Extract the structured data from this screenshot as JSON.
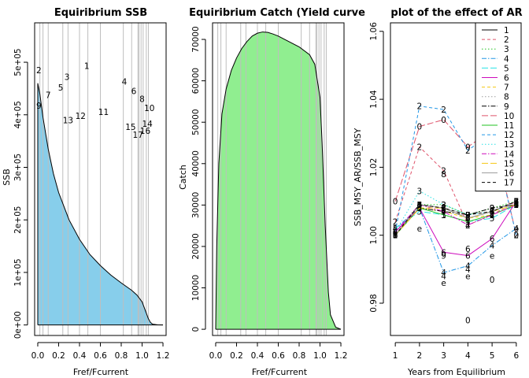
{
  "chart_data": [
    {
      "type": "area",
      "title": "Equiribrium  SSB",
      "xlabel": "Fref/Fcurrent",
      "ylabel": "SSB",
      "xlim": [
        -0.03,
        1.23
      ],
      "ylim": [
        -20000,
        575000
      ],
      "xticks": [
        0.0,
        0.2,
        0.4,
        0.6,
        0.8,
        1.0,
        1.2
      ],
      "xtick_labels": [
        "0.0",
        "0.2",
        "0.4",
        "0.6",
        "0.8",
        "1.0",
        "1.2"
      ],
      "yticks": [
        0,
        100000,
        200000,
        300000,
        400000,
        500000
      ],
      "ytick_labels": [
        "0e+00",
        "1e+05",
        "2e+05",
        "3e+05",
        "4e+05",
        "5e+05"
      ],
      "fill_color": "#87ceeb",
      "curve": {
        "x": [
          0.0,
          0.02,
          0.05,
          0.1,
          0.15,
          0.2,
          0.3,
          0.4,
          0.5,
          0.6,
          0.7,
          0.8,
          0.9,
          0.95,
          1.0,
          1.03,
          1.06,
          1.08,
          1.1,
          1.15,
          1.2
        ],
        "y": [
          460000,
          440000,
          395000,
          335000,
          288000,
          252000,
          200000,
          163000,
          134000,
          113000,
          95000,
          80000,
          66000,
          57000,
          44000,
          28000,
          12000,
          5000,
          1500,
          300,
          0
        ]
      },
      "vertical_lines_x": [
        0.02,
        0.05,
        0.1,
        0.24,
        0.29,
        0.4,
        0.48,
        0.6,
        0.82,
        0.9,
        0.96,
        0.97,
        0.99,
        1.01,
        1.04,
        1.06
      ],
      "point_labels": [
        {
          "label": "1",
          "x": 0.47,
          "y": 493000
        },
        {
          "label": "2",
          "x": 0.01,
          "y": 485000
        },
        {
          "label": "3",
          "x": 0.28,
          "y": 472000
        },
        {
          "label": "4",
          "x": 0.83,
          "y": 463000
        },
        {
          "label": "5",
          "x": 0.22,
          "y": 452000
        },
        {
          "label": "6",
          "x": 0.92,
          "y": 445000
        },
        {
          "label": "7",
          "x": 0.1,
          "y": 438000
        },
        {
          "label": "8",
          "x": 1.0,
          "y": 430000
        },
        {
          "label": "9",
          "x": 0.01,
          "y": 418000
        },
        {
          "label": "10",
          "x": 1.07,
          "y": 413000
        },
        {
          "label": "11",
          "x": 0.63,
          "y": 406000
        },
        {
          "label": "12",
          "x": 0.41,
          "y": 398000
        },
        {
          "label": "13",
          "x": 0.29,
          "y": 390000
        },
        {
          "label": "14",
          "x": 1.05,
          "y": 383000
        },
        {
          "label": "15",
          "x": 0.89,
          "y": 377000
        },
        {
          "label": "16",
          "x": 1.03,
          "y": 370000
        },
        {
          "label": "17",
          "x": 0.96,
          "y": 362000
        }
      ]
    },
    {
      "type": "area",
      "title": "Equiribrium Catch (Yield curve",
      "xlabel": "Fref/Fcurrent",
      "ylabel": "Catch",
      "xlim": [
        -0.03,
        1.23
      ],
      "ylim": [
        -1500,
        74000
      ],
      "xticks": [
        0.0,
        0.2,
        0.4,
        0.6,
        0.8,
        1.0,
        1.2
      ],
      "xtick_labels": [
        "0.0",
        "0.2",
        "0.4",
        "0.6",
        "0.8",
        "1.0",
        "1.2"
      ],
      "yticks": [
        0,
        10000,
        20000,
        30000,
        40000,
        50000,
        60000,
        70000
      ],
      "ytick_labels": [
        "0",
        "10000",
        "20000",
        "30000",
        "40000",
        "50000",
        "60000",
        "70000"
      ],
      "fill_color": "#90ee90",
      "curve": {
        "x": [
          0.0,
          0.01,
          0.03,
          0.06,
          0.1,
          0.15,
          0.2,
          0.25,
          0.3,
          0.35,
          0.4,
          0.45,
          0.5,
          0.55,
          0.6,
          0.7,
          0.8,
          0.9,
          0.95,
          1.0,
          1.02,
          1.05,
          1.08,
          1.1,
          1.15,
          1.2
        ],
        "y": [
          0,
          20000,
          40000,
          52000,
          58000,
          62500,
          65500,
          67800,
          69500,
          70800,
          71500,
          71800,
          71700,
          71300,
          70800,
          69500,
          68200,
          66300,
          64000,
          56000,
          45000,
          25000,
          9000,
          3500,
          500,
          0
        ]
      },
      "vertical_lines_x": [
        0.02,
        0.05,
        0.1,
        0.24,
        0.29,
        0.4,
        0.48,
        0.6,
        0.82,
        0.9,
        0.96,
        0.97,
        0.99,
        1.01,
        1.04,
        1.06
      ]
    },
    {
      "type": "line",
      "title": "plot of the effect of AR",
      "xlabel": "Years from Equilibrium",
      "ylabel": "SSB_MSY_AR/SSB_MSY",
      "xlim": [
        0.8,
        6.2
      ],
      "ylim": [
        0.9705,
        1.0625
      ],
      "xticks": [
        1,
        2,
        3,
        4,
        5,
        6
      ],
      "xtick_labels": [
        "1",
        "2",
        "3",
        "4",
        "5",
        "6"
      ],
      "yticks": [
        0.98,
        1.0,
        1.02,
        1.04,
        1.06
      ],
      "ytick_labels": [
        "0.98",
        "1.00",
        "1.02",
        "1.04",
        "1.06"
      ],
      "x": [
        1,
        2,
        3,
        4,
        5,
        6
      ],
      "legend_position": "top-right",
      "series": [
        {
          "name": "1",
          "marker": "1",
          "color": "#000000",
          "dash": "",
          "values": [
            1.0,
            1.009,
            1.008,
            1.005,
            1.007,
            1.01
          ]
        },
        {
          "name": "2",
          "marker": "2",
          "color": "#df536b",
          "dash": "4,3",
          "values": [
            1.004,
            1.026,
            1.019,
            1.003,
            1.006,
            1.01
          ]
        },
        {
          "name": "3",
          "marker": "3",
          "color": "#22c322",
          "dash": "1.5,2.5",
          "values": [
            1.001,
            1.009,
            1.009,
            1.006,
            1.008,
            1.01
          ]
        },
        {
          "name": "4",
          "marker": "4",
          "color": "#2297e6",
          "dash": "6,2,1.5,2",
          "values": [
            1.002,
            1.008,
            0.989,
            0.991,
            0.997,
            1.002
          ]
        },
        {
          "name": "5",
          "marker": "5",
          "color": "#28e2e5",
          "dash": "8,3",
          "values": [
            1.002,
            1.007,
            1.006,
            1.004,
            1.005,
            1.009
          ]
        },
        {
          "name": "6",
          "marker": "6",
          "color": "#cd0bbc",
          "dash": "",
          "values": [
            1.001,
            1.008,
            0.995,
            0.994,
            0.999,
            1.01
          ]
        },
        {
          "name": "7",
          "marker": "7",
          "color": "#f5c710",
          "dash": "4,3",
          "values": [
            1.0,
            1.008,
            1.007,
            1.005,
            1.006,
            1.009
          ]
        },
        {
          "name": "8",
          "marker": "8",
          "color": "#9e9e9e",
          "dash": "1.5,2.5",
          "values": [
            1.0,
            1.009,
            1.008,
            1.006,
            1.007,
            1.01
          ]
        },
        {
          "name": "9",
          "marker": "9",
          "color": "#000000",
          "dash": "6,2,1.5,2",
          "values": [
            1.0,
            1.008,
            1.007,
            1.006,
            1.008,
            1.009
          ]
        },
        {
          "name": "10",
          "marker": "0",
          "color": "#df536b",
          "dash": "8,3",
          "values": [
            1.01,
            1.032,
            1.034,
            1.026,
            1.031,
            1.0
          ]
        },
        {
          "name": "11",
          "marker": "1",
          "color": "#22c322",
          "dash": "",
          "values": [
            1.0,
            1.008,
            1.006,
            1.004,
            1.006,
            1.009
          ]
        },
        {
          "name": "12",
          "marker": "2",
          "color": "#2297e6",
          "dash": "4,3",
          "values": [
            1.001,
            1.038,
            1.037,
            1.025,
            1.03,
            1.0
          ]
        },
        {
          "name": "13",
          "marker": "3",
          "color": "#28e2e5",
          "dash": "1.5,2.5",
          "values": [
            1.001,
            1.013,
            1.009,
            1.006,
            1.007,
            1.009
          ]
        },
        {
          "name": "14",
          "marker": "4",
          "color": "#cd0bbc",
          "dash": "6,2,1.5,2",
          "values": [
            1.001,
            1.009,
            1.007,
            1.003,
            1.006,
            1.009
          ]
        },
        {
          "name": "15",
          "marker": "5",
          "color": "#f5c710",
          "dash": "8,3",
          "values": [
            1.0,
            1.008,
            1.008,
            1.005,
            1.007,
            1.009
          ]
        },
        {
          "name": "16",
          "marker": "6",
          "color": "#9e9e9e",
          "dash": "",
          "values": [
            1.0,
            1.009,
            1.008,
            1.005,
            1.007,
            1.01
          ]
        },
        {
          "name": "17",
          "marker": "7",
          "color": "#000000",
          "dash": "4,3",
          "values": [
            1.0,
            1.009,
            1.008,
            1.006,
            1.007,
            1.01
          ]
        }
      ],
      "extra_markers": [
        {
          "text": "e",
          "x": 2,
          "y": 1.002,
          "color": "#22c322"
        },
        {
          "text": "e",
          "x": 3,
          "y": 0.986,
          "color": "#22c322"
        },
        {
          "text": "e",
          "x": 4,
          "y": 0.988,
          "color": "#22c322"
        },
        {
          "text": "e",
          "x": 5,
          "y": 0.994,
          "color": "#22c322"
        },
        {
          "text": "e",
          "x": 6,
          "y": 1.002,
          "color": "#22c322"
        },
        {
          "text": "4",
          "x": 3,
          "y": 0.988,
          "color": "#2297e6"
        },
        {
          "text": "4",
          "x": 4,
          "y": 0.99,
          "color": "#2297e6"
        },
        {
          "text": "0",
          "x": 4,
          "y": 0.975,
          "color": "#2297e6"
        },
        {
          "text": "0",
          "x": 5,
          "y": 0.987,
          "color": "#2297e6"
        },
        {
          "text": "8",
          "x": 3,
          "y": 1.018,
          "color": "#df536b"
        },
        {
          "text": "9",
          "x": 3,
          "y": 0.994,
          "color": "#cd0bbc"
        },
        {
          "text": "6",
          "x": 4,
          "y": 0.996,
          "color": "#cd0bbc"
        },
        {
          "text": "6",
          "x": 6,
          "y": 1.009,
          "color": "#cd0bbc"
        }
      ]
    }
  ]
}
